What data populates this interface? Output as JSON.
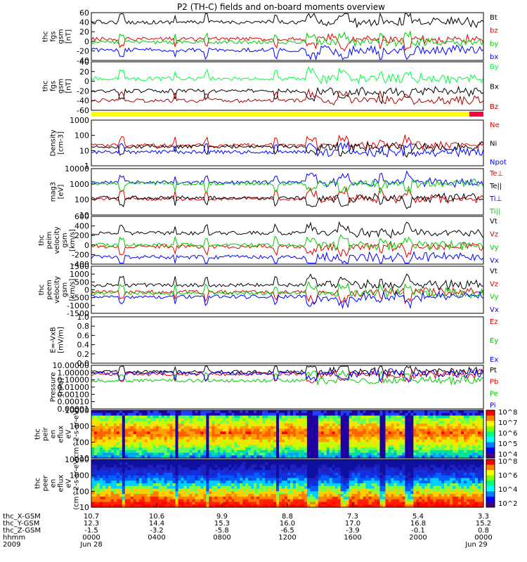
{
  "chart_data": {
    "type": "line",
    "title": "P2 (TH-C) fields and on-board moments overview",
    "date_start": "Jun 28",
    "date_end": "Jun 29",
    "year": "2009",
    "xaxis_rows": [
      {
        "label": "thc_X-GSM",
        "values": [
          "10.7",
          "10.6",
          "9.9",
          "8.8",
          "7.3",
          "5.4",
          "3.3"
        ]
      },
      {
        "label": "thc_Y-GSM",
        "values": [
          "12.3",
          "14.4",
          "15.3",
          "16.0",
          "17.0",
          "16.8",
          "15.2"
        ]
      },
      {
        "label": "thc_Z-GSM",
        "values": [
          "-1.5",
          "-3.2",
          "-5.8",
          "-6.5",
          "-3.9",
          "-0.1",
          "0.8"
        ]
      },
      {
        "label": "hhmm",
        "values": [
          "0000",
          "0400",
          "0800",
          "1200",
          "1600",
          "2000",
          "0000"
        ]
      }
    ],
    "panels": [
      {
        "id": "fgs_gsm",
        "ylabel": [
          "thc",
          "fgs",
          "gsm",
          "[nT]"
        ],
        "ylim": [
          -40,
          60
        ],
        "yticks": [
          "60",
          "40",
          "20",
          "0",
          "-20",
          "-40"
        ],
        "series": [
          {
            "name": "Bt",
            "color": "#000000"
          },
          {
            "name": "bz",
            "color": "#e00000"
          },
          {
            "name": "by",
            "color": "#00cc00"
          },
          {
            "name": "bx",
            "color": "#0000ff"
          }
        ]
      },
      {
        "id": "fgs_gsm_theta",
        "ylabel": [
          "thc",
          "fgs",
          "gsm",
          "[nT]"
        ],
        "ylim": [
          -60,
          40
        ],
        "yticks": [
          "40",
          "20",
          "0",
          "-20",
          "-40",
          "-60"
        ],
        "series": [
          {
            "name": "By",
            "color": "#00ff40"
          },
          {
            "name": "Bx",
            "color": "#000000"
          },
          {
            "name": "Bz",
            "color": "#aa0000"
          }
        ]
      },
      {
        "id": "density",
        "ylabel": [
          "Density",
          "[cm-3]"
        ],
        "scale": "log",
        "yticks": [
          "1000",
          "100",
          "10",
          "1"
        ],
        "series": [
          {
            "name": "Ne",
            "color": "#e00000"
          },
          {
            "name": "Ni",
            "color": "#000000"
          },
          {
            "name": "Npot",
            "color": "#0000ff"
          }
        ]
      },
      {
        "id": "temperature",
        "ylabel": [
          "mag3",
          "[eV]"
        ],
        "scale": "log",
        "yticks": [
          "10000",
          "1000",
          "100",
          "10"
        ],
        "series": [
          {
            "name": "Te⊥",
            "color": "#e00000"
          },
          {
            "name": "Te||",
            "color": "#000000"
          },
          {
            "name": "Ti⊥",
            "color": "#0000ff"
          },
          {
            "name": "Ti||",
            "color": "#00cc00"
          }
        ]
      },
      {
        "id": "peim_velocity",
        "ylabel": [
          "thc",
          "peim",
          "velocity",
          "gsm",
          "[km/s]"
        ],
        "ylim": [
          -400,
          600
        ],
        "yticks": [
          "600",
          "400",
          "200",
          "0",
          "-200",
          "-400"
        ],
        "series": [
          {
            "name": "Vt",
            "color": "#000000"
          },
          {
            "name": "Vz",
            "color": "#e00000"
          },
          {
            "name": "Vy",
            "color": "#00cc00"
          },
          {
            "name": "Vx",
            "color": "#0000ff"
          }
        ]
      },
      {
        "id": "peem_velocity",
        "ylabel": [
          "thc",
          "peem",
          "velocity",
          "gsm",
          "[km/s]"
        ],
        "ylim": [
          -1500,
          1500
        ],
        "yticks": [
          "1500",
          "1000",
          "500",
          "0",
          "-500",
          "-1000",
          "-1500"
        ],
        "series": [
          {
            "name": "Vt",
            "color": "#000000"
          },
          {
            "name": "Vz",
            "color": "#e00000"
          },
          {
            "name": "Vy",
            "color": "#00cc00"
          },
          {
            "name": "Vx",
            "color": "#0000ff"
          }
        ]
      },
      {
        "id": "efield",
        "ylabel": [
          "E=-VxB",
          "[mV/m]"
        ],
        "ylim": [
          0,
          1
        ],
        "yticks": [
          "1.0",
          "0.8",
          "0.6",
          "0.4",
          "0.2",
          "0.0"
        ],
        "series": [
          {
            "name": "Ez",
            "color": "#e00000"
          },
          {
            "name": "Ey",
            "color": "#00cc00"
          },
          {
            "name": "Ex",
            "color": "#0000ff"
          }
        ]
      },
      {
        "id": "pressure",
        "ylabel": [
          "Pressure",
          "[nPa]"
        ],
        "scale": "log",
        "yticks": [
          "10.00000",
          "1.00000",
          "0.10000",
          "0.01000",
          "0.00100",
          "0.00010",
          "0.00001"
        ],
        "series": [
          {
            "name": "Pt",
            "color": "#000000"
          },
          {
            "name": "Pb",
            "color": "#e00000"
          },
          {
            "name": "Pe",
            "color": "#00cc00"
          },
          {
            "name": "Pi",
            "color": "#0000ff"
          }
        ]
      },
      {
        "id": "peir_spectrogram",
        "type": "heatmap",
        "ylabel": [
          "thc",
          "peir",
          "en",
          "eflux",
          "eV",
          "(cm^2-s-sr-eV)"
        ],
        "scale": "log",
        "yticks": [
          "10000",
          "1000",
          "100",
          "10"
        ],
        "colorbar": [
          "10^8",
          "10^7",
          "10^6",
          "10^5",
          "10^4"
        ]
      },
      {
        "id": "peer_spectrogram",
        "type": "heatmap",
        "ylabel": [
          "thc",
          "peer",
          "en",
          "eflux",
          "eV",
          "(cm^2-s-sr-eV)"
        ],
        "scale": "log",
        "yticks": [
          "10000",
          "1000",
          "100",
          "10"
        ],
        "colorbar": [
          "10^8",
          "10^6",
          "10^4",
          "10^2"
        ]
      }
    ]
  }
}
